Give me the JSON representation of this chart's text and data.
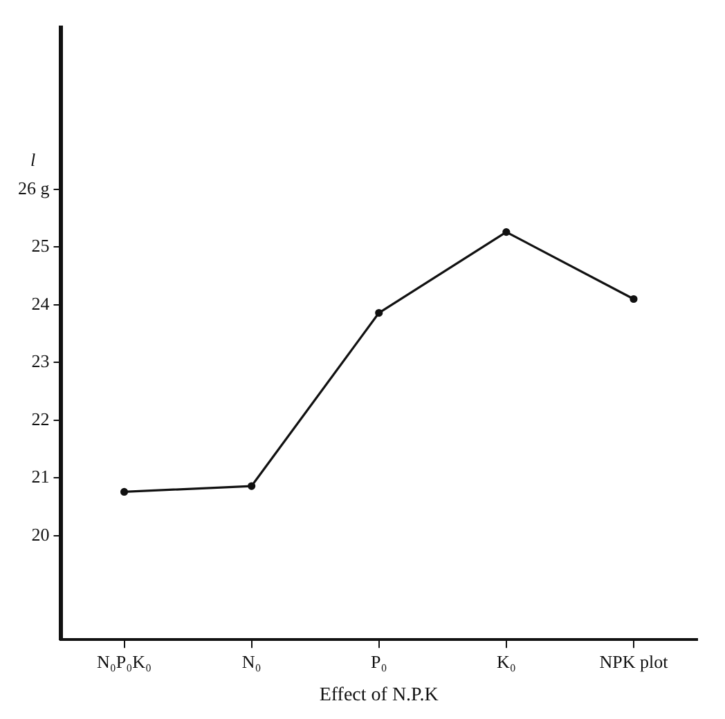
{
  "chart_data": {
    "type": "line",
    "xlabel": "Effect of N.P.K",
    "ylabel": "l",
    "categories": [
      "N₀P₀K₀",
      "N₀",
      "P₀",
      "K₀",
      "NPK plot"
    ],
    "values": [
      20.76,
      20.86,
      23.86,
      25.26,
      24.1
    ],
    "color": "#111111",
    "marker": "circle",
    "line_style": "solid",
    "ylim": [
      18.2,
      28.8
    ],
    "yticks": [
      20,
      21,
      22,
      23,
      24,
      25,
      {
        "value": 26,
        "label": "26 g"
      }
    ],
    "grid": false,
    "legend": false
  }
}
